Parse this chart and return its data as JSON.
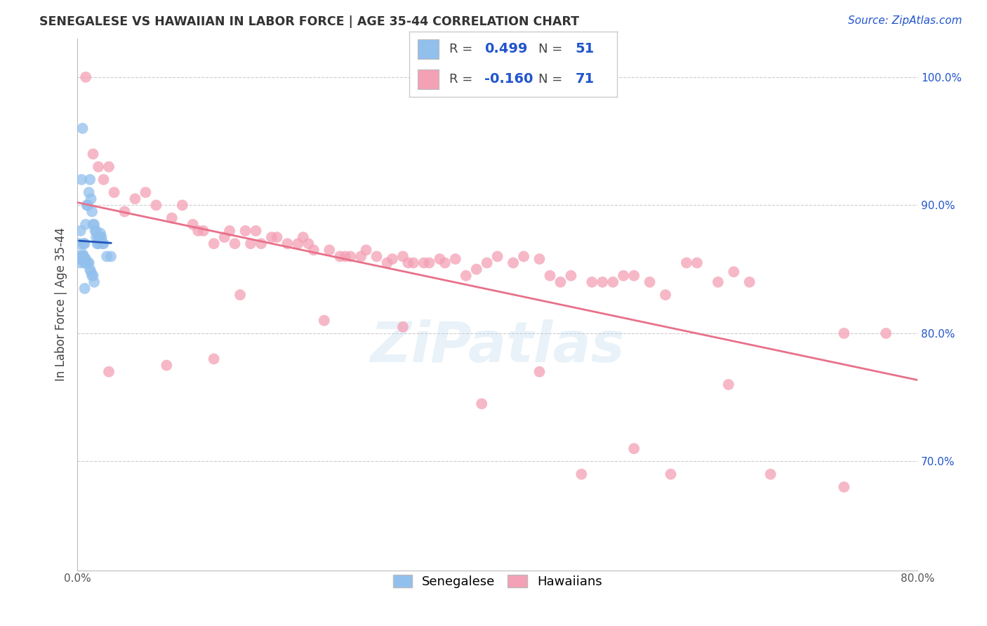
{
  "title": "SENEGALESE VS HAWAIIAN IN LABOR FORCE | AGE 35-44 CORRELATION CHART",
  "source": "Source: ZipAtlas.com",
  "ylabel": "In Labor Force | Age 35-44",
  "xlim": [
    0.0,
    0.8
  ],
  "ylim": [
    0.615,
    1.03
  ],
  "yticks": [
    0.7,
    0.8,
    0.9,
    1.0
  ],
  "ytick_labels": [
    "70.0%",
    "80.0%",
    "90.0%",
    "100.0%"
  ],
  "background_color": "#ffffff",
  "grid_color": "#cccccc",
  "senegalese_color": "#92c0ed",
  "hawaiian_color": "#f4a0b5",
  "senegalese_line_color": "#2255bb",
  "hawaiian_line_color": "#e8708a",
  "senegalese_x": [
    0.002,
    0.003,
    0.004,
    0.005,
    0.006,
    0.007,
    0.008,
    0.009,
    0.01,
    0.011,
    0.012,
    0.013,
    0.014,
    0.015,
    0.016,
    0.017,
    0.018,
    0.019,
    0.02,
    0.021,
    0.022,
    0.023,
    0.024,
    0.025,
    0.003,
    0.004,
    0.005,
    0.006,
    0.007,
    0.008,
    0.009,
    0.01,
    0.011,
    0.012,
    0.013,
    0.014,
    0.015,
    0.016,
    0.003,
    0.004,
    0.005,
    0.006,
    0.007,
    0.008,
    0.028,
    0.032,
    0.018,
    0.02,
    0.022,
    0.005,
    0.007
  ],
  "senegalese_y": [
    0.87,
    0.88,
    0.92,
    0.86,
    0.87,
    0.87,
    0.885,
    0.9,
    0.9,
    0.91,
    0.92,
    0.905,
    0.895,
    0.885,
    0.885,
    0.88,
    0.875,
    0.87,
    0.87,
    0.875,
    0.875,
    0.875,
    0.87,
    0.87,
    0.855,
    0.858,
    0.858,
    0.86,
    0.855,
    0.855,
    0.855,
    0.855,
    0.855,
    0.85,
    0.848,
    0.845,
    0.845,
    0.84,
    0.858,
    0.86,
    0.862,
    0.86,
    0.858,
    0.858,
    0.86,
    0.86,
    0.88,
    0.875,
    0.878,
    0.96,
    0.835
  ],
  "hawaiian_x": [
    0.008,
    0.015,
    0.02,
    0.025,
    0.03,
    0.035,
    0.045,
    0.055,
    0.065,
    0.075,
    0.09,
    0.1,
    0.11,
    0.115,
    0.12,
    0.13,
    0.14,
    0.145,
    0.15,
    0.16,
    0.165,
    0.17,
    0.175,
    0.185,
    0.19,
    0.2,
    0.21,
    0.215,
    0.22,
    0.225,
    0.24,
    0.25,
    0.255,
    0.26,
    0.27,
    0.275,
    0.285,
    0.295,
    0.3,
    0.31,
    0.315,
    0.32,
    0.33,
    0.335,
    0.345,
    0.35,
    0.36,
    0.37,
    0.38,
    0.39,
    0.4,
    0.415,
    0.425,
    0.44,
    0.45,
    0.46,
    0.47,
    0.49,
    0.5,
    0.51,
    0.52,
    0.53,
    0.545,
    0.56,
    0.58,
    0.59,
    0.61,
    0.625,
    0.64,
    0.73,
    0.77
  ],
  "hawaiian_y": [
    1.0,
    0.94,
    0.93,
    0.92,
    0.93,
    0.91,
    0.895,
    0.905,
    0.91,
    0.9,
    0.89,
    0.9,
    0.885,
    0.88,
    0.88,
    0.87,
    0.875,
    0.88,
    0.87,
    0.88,
    0.87,
    0.88,
    0.87,
    0.875,
    0.875,
    0.87,
    0.87,
    0.875,
    0.87,
    0.865,
    0.865,
    0.86,
    0.86,
    0.86,
    0.86,
    0.865,
    0.86,
    0.855,
    0.858,
    0.86,
    0.855,
    0.855,
    0.855,
    0.855,
    0.858,
    0.855,
    0.858,
    0.845,
    0.85,
    0.855,
    0.86,
    0.855,
    0.86,
    0.858,
    0.845,
    0.84,
    0.845,
    0.84,
    0.84,
    0.84,
    0.845,
    0.845,
    0.84,
    0.83,
    0.855,
    0.855,
    0.84,
    0.848,
    0.84,
    0.8,
    0.8
  ],
  "hawaiian_outlier_x": [
    0.03,
    0.085,
    0.13,
    0.155,
    0.235,
    0.31,
    0.385,
    0.44,
    0.48,
    0.53,
    0.565,
    0.62,
    0.66,
    0.73
  ],
  "hawaiian_outlier_y": [
    0.77,
    0.775,
    0.78,
    0.83,
    0.81,
    0.805,
    0.745,
    0.77,
    0.69,
    0.71,
    0.69,
    0.76,
    0.69,
    0.68
  ]
}
